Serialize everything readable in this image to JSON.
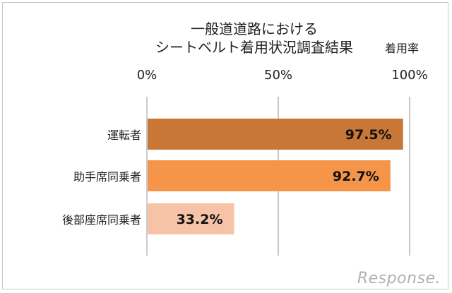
{
  "chart_data": {
    "type": "bar",
    "orientation": "horizontal",
    "title": [
      "一般道道路における",
      "シートベルト着用状況調査結果"
    ],
    "unit_label": "着用率",
    "x_ticks": [
      "0%",
      "50%",
      "100%"
    ],
    "xlim": [
      0,
      100
    ],
    "categories": [
      "運転者",
      "助手席同乗者",
      "後部座席同乗者"
    ],
    "values": [
      97.5,
      92.7,
      33.2
    ],
    "value_labels": [
      "97.5%",
      "92.7%",
      "33.2%"
    ],
    "colors": [
      "#c87737",
      "#f4954a",
      "#f7c3a7"
    ],
    "grid": true,
    "legend": "none"
  },
  "watermark": "Response."
}
